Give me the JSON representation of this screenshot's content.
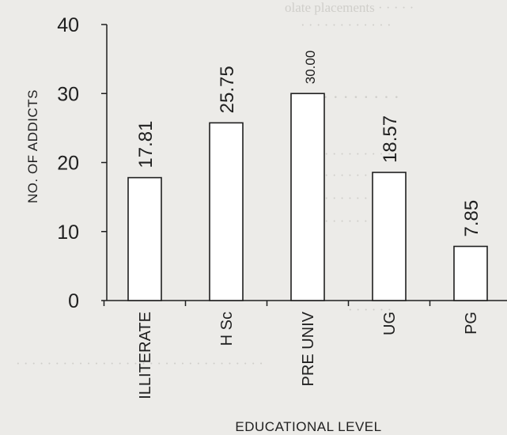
{
  "chart_data": {
    "type": "bar",
    "title": "",
    "xlabel": "EDUCATIONAL LEVEL",
    "ylabel": "NO. OF ADDICTS",
    "categories": [
      "ILLITERATE",
      "H Sc",
      "PRE UNIV",
      "UG",
      "PG"
    ],
    "values": [
      17.81,
      25.75,
      30.0,
      18.57,
      7.85
    ],
    "value_labels": [
      "17.81",
      "25.75",
      "30.00",
      "18.57",
      "7.85"
    ],
    "ylim": [
      0,
      40
    ],
    "yticks": [
      0,
      10,
      20,
      30,
      40
    ],
    "grid": false,
    "legend": "none",
    "bar_fill": "#ffffff",
    "bar_stroke": "#1f1f1f"
  }
}
